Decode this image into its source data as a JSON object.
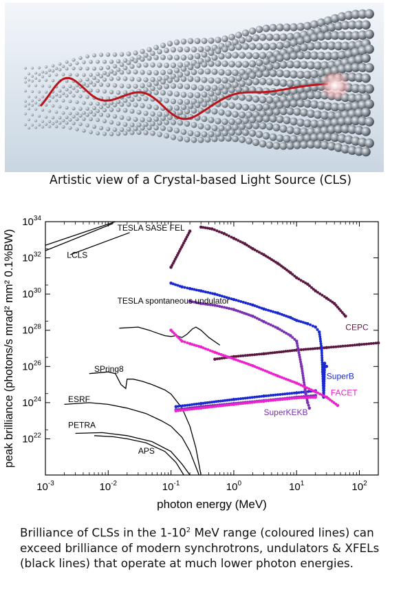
{
  "illustration_caption": "Artistic view of a Crystal-based Light Source (CLS)",
  "caption": {
    "part1": "Brilliance of CLSs in the 1-10",
    "sup": "2",
    "part2": " MeV range (coloured lines) can exceed brilliance of modern synchrotrons, undulators & XFELs (black lines)  that operate at much lower photon energies."
  },
  "chart_data": {
    "type": "scatter",
    "xlabel": "photon energy (MeV)",
    "ylabel": "peak brilliance (photons/s mrad² mm² 0.1%BW)",
    "x_scale": "log",
    "y_scale": "log",
    "xlim": [
      0.001,
      200
    ],
    "ylim": [
      1e+20,
      1e+34
    ],
    "x_ticks": [
      {
        "v": 0.001,
        "b": "10",
        "e": "-3"
      },
      {
        "v": 0.01,
        "b": "10",
        "e": "-2"
      },
      {
        "v": 0.1,
        "b": "10",
        "e": "-1"
      },
      {
        "v": 1,
        "b": "10",
        "e": "0"
      },
      {
        "v": 10,
        "b": "10",
        "e": "1"
      },
      {
        "v": 100,
        "b": "10",
        "e": "2"
      }
    ],
    "y_ticks": [
      {
        "v": 1e+22,
        "b": "10",
        "e": "22"
      },
      {
        "v": 1e+24,
        "b": "10",
        "e": "24"
      },
      {
        "v": 1e+26,
        "b": "10",
        "e": "26"
      },
      {
        "v": 1e+28,
        "b": "10",
        "e": "28"
      },
      {
        "v": 1e+30,
        "b": "10",
        "e": "30"
      },
      {
        "v": 1e+32,
        "b": "10",
        "e": "32"
      },
      {
        "v": 1e+34,
        "b": "10",
        "e": "34"
      }
    ],
    "legend": "none (direct labels on curves)",
    "series": [
      {
        "name": "TESLA SASE FEL",
        "kind": "line",
        "color": "#000000",
        "points": [
          [
            0.001,
            2.5e+32
          ],
          [
            0.012,
            8e+33
          ]
        ],
        "label_at": [
          0.014,
          3.2e+33
        ]
      },
      {
        "name": "TESLA SASE FEL",
        "kind": "line",
        "color": "#000000",
        "points": [
          [
            0.001,
            5e+32
          ],
          [
            0.013,
            1e+34
          ]
        ],
        "label": false
      },
      {
        "name": "LCLS",
        "kind": "line",
        "color": "#000000",
        "points": [
          [
            0.0025,
            1.5e+32
          ],
          [
            0.022,
            2.5e+33
          ]
        ],
        "label_at": [
          0.0022,
          1e+32
        ]
      },
      {
        "name": "TESLA spontaneous undulator",
        "kind": "line",
        "color": "#000000",
        "points": [
          [
            0.015,
            1.3e+28
          ],
          [
            0.03,
            1.5e+28
          ],
          [
            0.045,
            1e+28
          ],
          [
            0.06,
            7e+27
          ],
          [
            0.08,
            5e+27
          ],
          [
            0.1,
            4.5e+27
          ],
          [
            0.12,
            5e+27
          ],
          [
            0.15,
            4e+27
          ],
          [
            0.18,
            6e+27
          ],
          [
            0.22,
            1.2e+28
          ],
          [
            0.25,
            1.5e+28
          ],
          [
            0.3,
            1e+28
          ],
          [
            0.4,
            4e+27
          ],
          [
            0.6,
            1.5e+27
          ]
        ],
        "label_at": [
          0.014,
          3e+29
        ]
      },
      {
        "name": "SPring8",
        "kind": "line",
        "color": "#000000",
        "points": [
          [
            0.005,
            4e+25
          ],
          [
            0.01,
            5e+25
          ],
          [
            0.013,
            4e+25
          ],
          [
            0.016,
            1e+25
          ],
          [
            0.019,
            6e+24
          ],
          [
            0.02,
            2e+25
          ],
          [
            0.025,
            2e+25
          ],
          [
            0.035,
            1.5e+25
          ],
          [
            0.05,
            1e+25
          ],
          [
            0.08,
            5e+24
          ],
          [
            0.1,
            3e+24
          ],
          [
            0.15,
            5e+23
          ],
          [
            0.2,
            5e+22
          ],
          [
            0.25,
            3e+21
          ],
          [
            0.3,
            1e+20
          ]
        ],
        "label_at": [
          0.006,
          5e+25
        ]
      },
      {
        "name": "ESRF",
        "kind": "line",
        "color": "#000000",
        "points": [
          [
            0.002,
            8e+23
          ],
          [
            0.005,
            1e+24
          ],
          [
            0.01,
            8e+23
          ],
          [
            0.02,
            5e+23
          ],
          [
            0.04,
            2.5e+23
          ],
          [
            0.07,
            1e+23
          ],
          [
            0.1,
            5e+22
          ],
          [
            0.15,
            1.2e+22
          ],
          [
            0.2,
            2e+21
          ],
          [
            0.28,
            1e+20
          ]
        ],
        "label_at": [
          0.0023,
          1.1e+24
        ]
      },
      {
        "name": "PETRA",
        "kind": "line",
        "color": "#000000",
        "points": [
          [
            0.003,
            2e+22
          ],
          [
            0.008,
            2.2e+22
          ],
          [
            0.02,
            1.5e+22
          ],
          [
            0.05,
            7e+21
          ],
          [
            0.1,
            2e+21
          ],
          [
            0.15,
            4e+20
          ],
          [
            0.2,
            1e+20
          ]
        ],
        "label_at": [
          0.0023,
          4e+22
        ]
      },
      {
        "name": "APS",
        "kind": "line",
        "color": "#000000",
        "points": [
          [
            0.006,
            1.5e+22
          ],
          [
            0.012,
            1.3e+22
          ],
          [
            0.02,
            1e+22
          ],
          [
            0.04,
            6e+21
          ],
          [
            0.08,
            2e+21
          ],
          [
            0.12,
            5e+20
          ],
          [
            0.16,
            1e+20
          ]
        ],
        "label_at": [
          0.03,
          1.5e+21
        ]
      },
      {
        "name": "CEPC",
        "kind": "scatter",
        "color": "#5a1840",
        "points": [
          [
            0.3,
            5e+33
          ],
          [
            0.45,
            4e+33
          ],
          [
            0.7,
            2.2e+33
          ],
          [
            1,
            1.2e+33
          ],
          [
            1.5,
            6e+32
          ],
          [
            2,
            3.2e+32
          ],
          [
            3,
            1.5e+32
          ],
          [
            5,
            5e+31
          ],
          [
            8,
            1.5e+31
          ],
          [
            10,
            8e+30
          ],
          [
            15,
            3.5e+30
          ],
          [
            20,
            1.5e+30
          ],
          [
            30,
            6e+29
          ],
          [
            40,
            3e+29
          ],
          [
            60,
            6e+28
          ]
        ],
        "label_at": [
          60,
          1e+28
        ]
      },
      {
        "name": "CEPC",
        "kind": "scatter",
        "color": "#5a1840",
        "points": [
          [
            0.1,
            3e+31
          ],
          [
            0.2,
            3e+33
          ]
        ],
        "label": false
      },
      {
        "name": "CEPC",
        "kind": "scatter",
        "color": "#5a1840",
        "points": [
          [
            0.5,
            2.5e+26
          ],
          [
            1,
            3.5e+26
          ],
          [
            3,
            5e+26
          ],
          [
            10,
            8e+26
          ],
          [
            30,
            1.1e+27
          ],
          [
            100,
            1.6e+27
          ],
          [
            200,
            2e+27
          ]
        ],
        "label": false
      },
      {
        "name": "SuperB",
        "kind": "scatter",
        "color": "#1a28d0",
        "points": [
          [
            0.1,
            4e+30
          ],
          [
            0.15,
            2.5e+30
          ],
          [
            0.2,
            2e+30
          ],
          [
            0.3,
            1.5e+30
          ],
          [
            0.5,
            1e+30
          ],
          [
            1,
            5e+29
          ],
          [
            2,
            2.5e+29
          ],
          [
            3,
            1.5e+29
          ],
          [
            5,
            9e+28
          ],
          [
            8,
            5e+28
          ],
          [
            10,
            3.5e+28
          ],
          [
            15,
            2.3e+28
          ],
          [
            20,
            1.5e+28
          ],
          [
            23,
            8e+27
          ],
          [
            25,
            1e+27
          ],
          [
            26,
            5e+25
          ],
          [
            27,
            2e+24
          ],
          [
            28,
            1.5e+26
          ],
          [
            30,
            1e+26
          ]
        ],
        "label_at": [
          30,
          2e+25
        ]
      },
      {
        "name": "SuperB",
        "kind": "scatter",
        "color": "#1a28d0",
        "points": [
          [
            0.12,
            6e+23
          ],
          [
            0.3,
            9e+23
          ],
          [
            1,
            1.5e+24
          ],
          [
            3,
            2.3e+24
          ],
          [
            10,
            3.5e+24
          ],
          [
            20,
            4.5e+24
          ]
        ],
        "label": false
      },
      {
        "name": "SuperKEKB",
        "kind": "scatter",
        "color": "#7a30b0",
        "points": [
          [
            0.2,
            4e+29
          ],
          [
            0.3,
            3e+29
          ],
          [
            0.5,
            2.4e+29
          ],
          [
            1,
            1.4e+29
          ],
          [
            2,
            6e+28
          ],
          [
            3,
            3e+28
          ],
          [
            5,
            1.3e+28
          ],
          [
            8,
            5e+27
          ],
          [
            10,
            2.5e+27
          ],
          [
            12,
            1e+26
          ],
          [
            14,
            3e+24
          ],
          [
            15,
            1e+24
          ],
          [
            16,
            5e+23
          ]
        ],
        "label_at": [
          3,
          2e+23
        ]
      },
      {
        "name": "SuperKEKB",
        "kind": "scatter",
        "color": "#7a30b0",
        "points": [
          [
            0.12,
            4e+23
          ],
          [
            0.3,
            6e+23
          ],
          [
            1,
            9e+23
          ],
          [
            3,
            1.3e+24
          ],
          [
            10,
            2e+24
          ],
          [
            20,
            2.5e+24
          ]
        ],
        "label": false
      },
      {
        "name": "FACET",
        "kind": "scatter",
        "color": "#ee22cc",
        "points": [
          [
            0.1,
            1e+28
          ],
          [
            0.15,
            2.5e+27
          ],
          [
            0.2,
            1.8e+27
          ],
          [
            0.3,
            1.2e+27
          ],
          [
            0.5,
            6e+26
          ],
          [
            1,
            2.6e+26
          ],
          [
            2,
            1.1e+26
          ],
          [
            5,
            3e+25
          ],
          [
            10,
            1.2e+25
          ],
          [
            20,
            4e+24
          ],
          [
            30,
            2e+24
          ],
          [
            45,
            7e+23
          ]
        ],
        "label_at": [
          35,
          2.5e+24
        ]
      },
      {
        "name": "FACET",
        "kind": "scatter",
        "color": "#ee22cc",
        "points": [
          [
            0.12,
            3.5e+23
          ],
          [
            0.3,
            5e+23
          ],
          [
            1,
            8e+23
          ],
          [
            3,
            1.2e+24
          ],
          [
            10,
            1.8e+24
          ],
          [
            20,
            2e+24
          ]
        ],
        "label": false
      }
    ]
  }
}
